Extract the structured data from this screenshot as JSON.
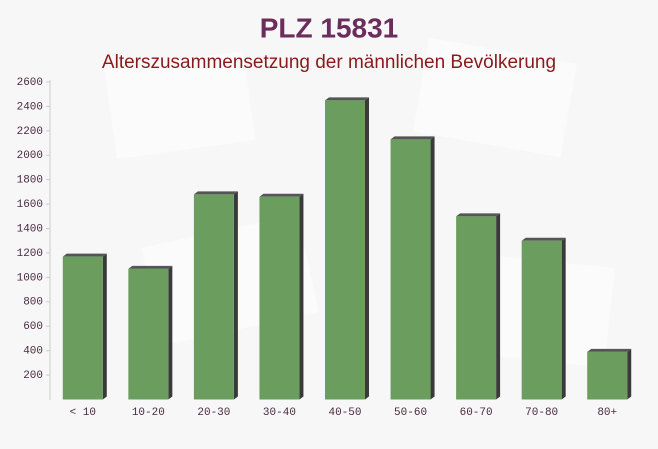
{
  "chart_data": {
    "type": "bar",
    "title": "PLZ 15831",
    "subtitle": "Alterszusammensetzung der männlichen Bevölkerung",
    "categories": [
      "< 10",
      "10-20",
      "20-30",
      "30-40",
      "40-50",
      "50-60",
      "60-70",
      "70-80",
      "80+"
    ],
    "values": [
      1170,
      1070,
      1680,
      1660,
      2450,
      2130,
      1500,
      1300,
      390
    ],
    "color": "#6b9e5e",
    "ylim": [
      0,
      2600
    ],
    "yticks": [
      200,
      400,
      600,
      800,
      1000,
      1200,
      1400,
      1600,
      1800,
      2000,
      2200,
      2400,
      2600
    ],
    "grid": false
  }
}
